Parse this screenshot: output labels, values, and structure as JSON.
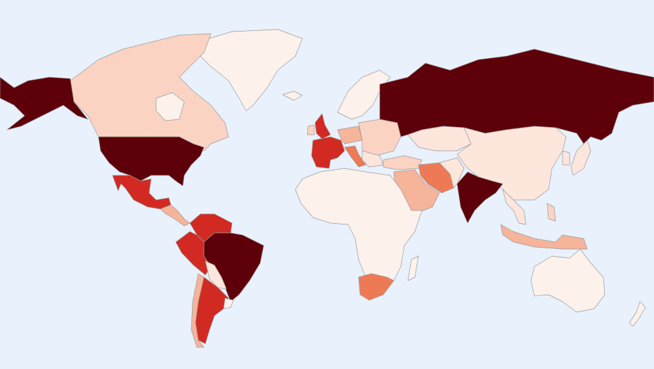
{
  "map": {
    "background": "#e8f1fc",
    "border": "#9a9a9a",
    "fills": [
      "#5e0009",
      "#d22a22",
      "#ee7a55",
      "#f6b49b",
      "#fbd3c3",
      "#fde6dc",
      "#fdf1ec"
    ]
  }
}
